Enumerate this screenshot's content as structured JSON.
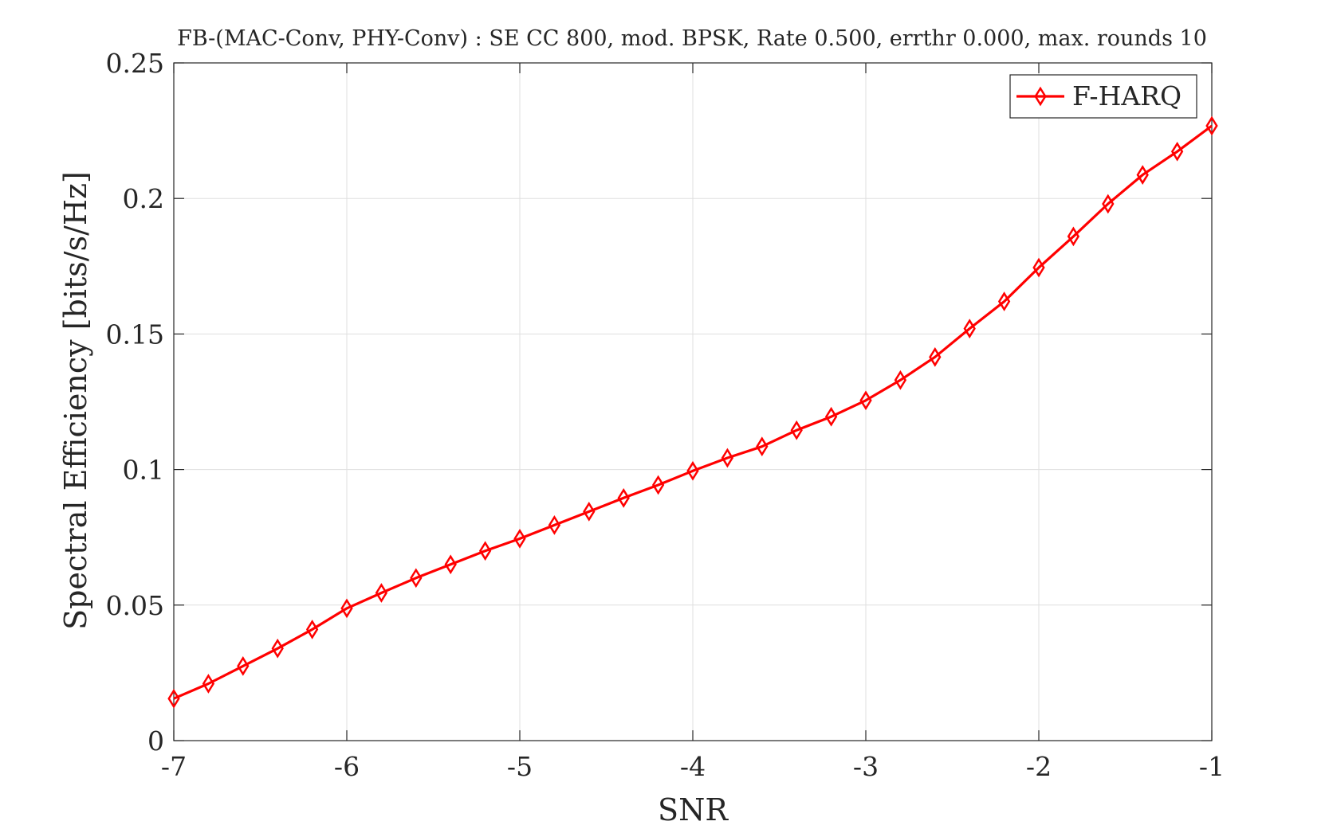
{
  "colors": {
    "series": "#ff0000",
    "axis": "#262626",
    "grid": "#dfdfdf",
    "background": "#ffffff"
  },
  "chart_data": {
    "type": "line",
    "title": "FB-(MAC-Conv, PHY-Conv) : SE CC 800, mod. BPSK, Rate 0.500, errthr 0.000, max. rounds 10",
    "xlabel": "SNR",
    "ylabel": "Spectral Efficiency [bits/s/Hz]",
    "xlim": [
      -7,
      -1
    ],
    "ylim": [
      0,
      0.25
    ],
    "xticks": [
      -7,
      -6,
      -5,
      -4,
      -3,
      -2,
      -1
    ],
    "xtick_labels": [
      "-7",
      "-6",
      "-5",
      "-4",
      "-3",
      "-2",
      "-1"
    ],
    "yticks": [
      0,
      0.05,
      0.1,
      0.15,
      0.2,
      0.25
    ],
    "ytick_labels": [
      "0",
      "0.05",
      "0.1",
      "0.15",
      "0.2",
      "0.25"
    ],
    "grid": true,
    "legend_position": "top-right",
    "series": [
      {
        "name": "F-HARQ",
        "marker": "diamond",
        "color": "#ff0000",
        "x": [
          -7,
          -6.8,
          -6.6,
          -6.4,
          -6.2,
          -6,
          -5.8,
          -5.6,
          -5.4,
          -5.2,
          -5,
          -4.8,
          -4.6,
          -4.4,
          -4.2,
          -4,
          -3.8,
          -3.6,
          -3.4,
          -3.2,
          -3,
          -2.8,
          -2.6,
          -2.4,
          -2.2,
          -2,
          -1.8,
          -1.6,
          -1.4,
          -1.2,
          -1
        ],
        "values": [
          0.0155,
          0.021,
          0.0275,
          0.034,
          0.041,
          0.0488,
          0.0545,
          0.06,
          0.065,
          0.07,
          0.0745,
          0.0795,
          0.0845,
          0.0895,
          0.0943,
          0.0995,
          0.1043,
          0.1085,
          0.1145,
          0.1195,
          0.1255,
          0.133,
          0.1415,
          0.152,
          0.162,
          0.1745,
          0.186,
          0.198,
          0.2087,
          0.2173,
          0.2268
        ]
      }
    ]
  }
}
